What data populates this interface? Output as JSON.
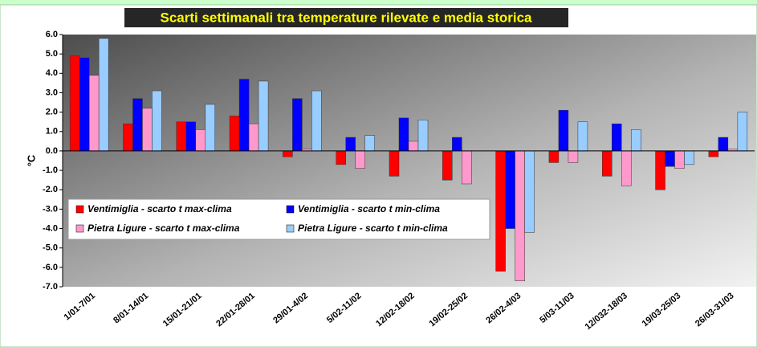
{
  "chart_data": {
    "type": "bar",
    "title": "Scarti settimanali tra temperature rilevate e media storica",
    "y_label": "°C",
    "categories": [
      "1/01-7/01",
      "8/01-14/01",
      "15/01-21/01",
      "22/01-28/01",
      "29/01-4/02",
      "5/02-11/02",
      "12/02-18/02",
      "19/02-25/02",
      "26/02-4/03",
      "5/03-11/03",
      "12/032-18/03",
      "19/03-25/03",
      "26/03-31/03"
    ],
    "series": [
      {
        "name": "Ventimiglia - scarto t max-clima",
        "color": "#ff0000",
        "values": [
          4.9,
          1.4,
          1.5,
          1.8,
          -0.3,
          -0.7,
          -1.3,
          -1.5,
          -6.2,
          -0.6,
          -1.3,
          -2.0,
          -0.3
        ]
      },
      {
        "name": "Ventimiglia - scarto t min-clima",
        "color": "#0000ff",
        "values": [
          4.8,
          2.7,
          1.5,
          3.7,
          2.7,
          0.7,
          1.7,
          0.7,
          -4.0,
          2.1,
          1.4,
          -0.8,
          0.7
        ]
      },
      {
        "name": "Pietra Ligure - scarto t max-clima",
        "color": "#ff99cc",
        "values": [
          3.9,
          2.2,
          1.1,
          1.4,
          0.1,
          -0.9,
          0.5,
          -1.7,
          -6.7,
          -0.6,
          -1.8,
          -0.9,
          0.1
        ]
      },
      {
        "name": "Pietra Ligure - scarto t min-clima",
        "color": "#99ccff",
        "values": [
          5.8,
          3.1,
          2.4,
          3.6,
          3.1,
          0.8,
          1.6,
          0.0,
          -4.2,
          1.5,
          1.1,
          -0.7,
          2.0
        ]
      }
    ],
    "ylim": [
      -7,
      6
    ],
    "yticks": [
      {
        "value": 6,
        "label": "6.0"
      },
      {
        "value": 5,
        "label": "5.0"
      },
      {
        "value": 4,
        "label": "4.0"
      },
      {
        "value": 3,
        "label": "3.0"
      },
      {
        "value": 2,
        "label": "2.0"
      },
      {
        "value": 1,
        "label": "1.0"
      },
      {
        "value": 0,
        "label": "0.0"
      },
      {
        "value": -1,
        "label": "-1.0"
      },
      {
        "value": -2,
        "label": "-2.0"
      },
      {
        "value": -3,
        "label": "-3.0"
      },
      {
        "value": -4,
        "label": "-4.0"
      },
      {
        "value": -5,
        "label": "-5.0"
      },
      {
        "value": -6,
        "label": "-6.0"
      },
      {
        "value": -7,
        "label": "-7.0"
      }
    ],
    "grid": false
  }
}
